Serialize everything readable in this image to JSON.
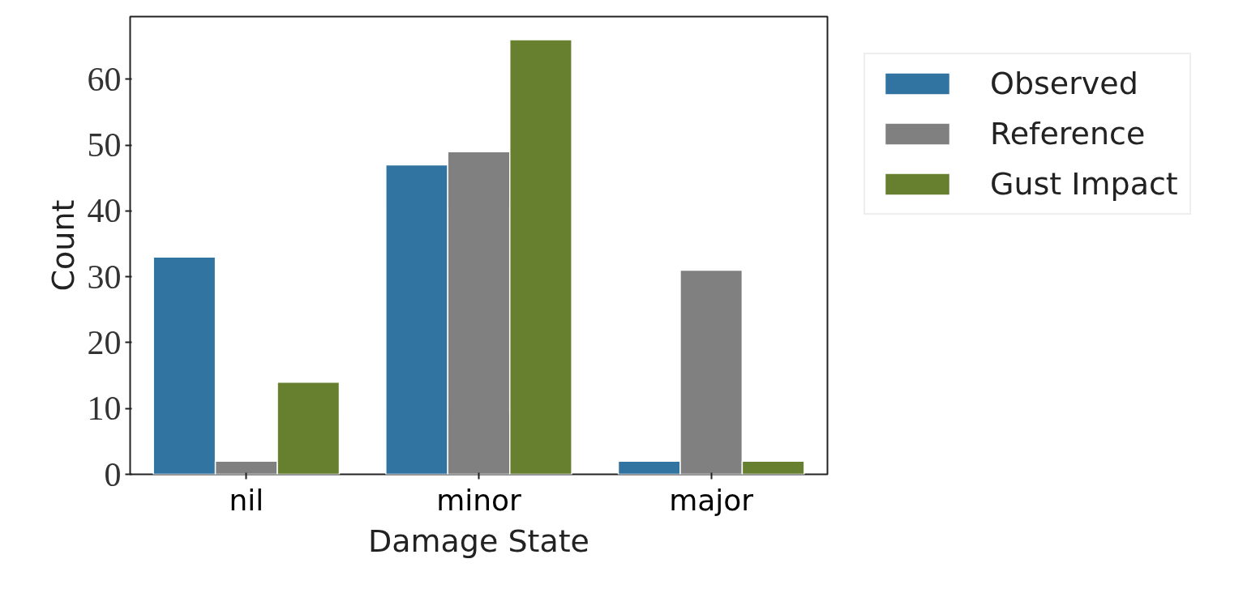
{
  "chart_data": {
    "type": "bar",
    "xlabel": "Damage State",
    "ylabel": "Count",
    "categories": [
      "nil",
      "minor",
      "major"
    ],
    "series": [
      {
        "name": "Observed",
        "color": "#3274a1",
        "values": [
          33,
          47,
          2
        ]
      },
      {
        "name": "Reference",
        "color": "#808080",
        "values": [
          2,
          49,
          31
        ]
      },
      {
        "name": "Gust Impact",
        "color": "#668030",
        "values": [
          14,
          66,
          2
        ]
      }
    ],
    "ylim": [
      0,
      69.5
    ],
    "yticks": [
      0,
      10,
      20,
      30,
      40,
      50,
      60
    ],
    "grid": false,
    "legend": "top right"
  }
}
